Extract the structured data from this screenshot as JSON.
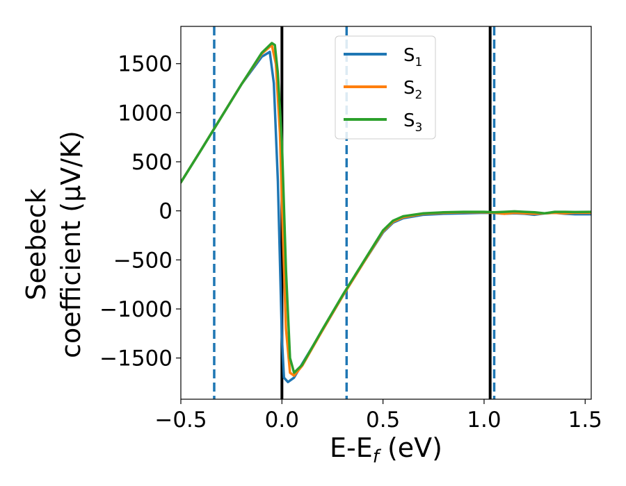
{
  "chart_data": {
    "type": "line",
    "xlabel": "E-E",
    "xlabel_sub": "f",
    "xlabel_unit": " (eV)",
    "ylabel_line1": "Seebeck",
    "ylabel_line2": "coefficient  (μV/K)",
    "xlim": [
      -0.5,
      1.53
    ],
    "ylim": [
      -1920,
      1880
    ],
    "xticks": [
      -0.5,
      0.0,
      0.5,
      1.0,
      1.5
    ],
    "xtick_labels": [
      "−0.5",
      "0.0",
      "0.5",
      "1.0",
      "1.5"
    ],
    "yticks": [
      -1500,
      -1000,
      -500,
      0,
      500,
      1000,
      1500
    ],
    "ytick_labels": [
      "−1500",
      "−1000",
      "−500",
      "0",
      "500",
      "1000",
      "1500"
    ],
    "grid": false,
    "legend_position": "top-center",
    "series": [
      {
        "name": "S",
        "subscript": "1",
        "color": "#1f77b4",
        "x": [
          -0.5,
          -0.4,
          -0.3,
          -0.2,
          -0.1,
          -0.06,
          -0.04,
          -0.02,
          0.0,
          0.01,
          0.03,
          0.06,
          0.1,
          0.2,
          0.3,
          0.4,
          0.5,
          0.55,
          0.6,
          0.7,
          0.8,
          0.9,
          1.0,
          1.05,
          1.1,
          1.15,
          1.2,
          1.25,
          1.3,
          1.35,
          1.4,
          1.45,
          1.53
        ],
        "y": [
          290,
          620,
          955,
          1290,
          1570,
          1620,
          1300,
          300,
          -1300,
          -1700,
          -1745,
          -1700,
          -1560,
          -1220,
          -870,
          -540,
          -220,
          -120,
          -75,
          -40,
          -30,
          -25,
          -20,
          -22,
          -30,
          -25,
          -30,
          -40,
          -25,
          -20,
          -30,
          -35,
          -35
        ]
      },
      {
        "name": "S",
        "subscript": "2",
        "color": "#ff7f0e",
        "x": [
          -0.5,
          -0.4,
          -0.3,
          -0.2,
          -0.1,
          -0.05,
          -0.03,
          -0.01,
          0.0,
          0.02,
          0.04,
          0.06,
          0.1,
          0.2,
          0.3,
          0.4,
          0.5,
          0.55,
          0.6,
          0.7,
          0.8,
          0.9,
          1.0,
          1.05,
          1.1,
          1.15,
          1.2,
          1.25,
          1.3,
          1.35,
          1.4,
          1.45,
          1.53
        ],
        "y": [
          290,
          620,
          955,
          1290,
          1600,
          1690,
          1500,
          800,
          100,
          -1200,
          -1650,
          -1680,
          -1580,
          -1220,
          -870,
          -540,
          -210,
          -110,
          -65,
          -30,
          -20,
          -15,
          -15,
          -20,
          -30,
          -20,
          -25,
          -30,
          -25,
          -20,
          -25,
          -20,
          -20
        ]
      },
      {
        "name": "S",
        "subscript": "3",
        "color": "#2ca02c",
        "x": [
          -0.5,
          -0.4,
          -0.3,
          -0.2,
          -0.1,
          -0.05,
          -0.035,
          -0.02,
          0.0,
          0.02,
          0.04,
          0.06,
          0.1,
          0.2,
          0.3,
          0.4,
          0.5,
          0.55,
          0.6,
          0.7,
          0.8,
          0.9,
          1.0,
          1.05,
          1.1,
          1.15,
          1.2,
          1.25,
          1.3,
          1.35,
          1.4,
          1.45,
          1.53
        ],
        "y": [
          290,
          620,
          955,
          1290,
          1610,
          1710,
          1690,
          1400,
          700,
          -600,
          -1500,
          -1650,
          -1570,
          -1210,
          -860,
          -530,
          -200,
          -100,
          -55,
          -25,
          -15,
          -10,
          -10,
          -15,
          -10,
          -5,
          -10,
          -15,
          -25,
          -10,
          -10,
          -12,
          -10
        ]
      }
    ],
    "vlines": [
      {
        "x": -0.335,
        "style": "dashed",
        "color": "#1f77b4"
      },
      {
        "x": 0.0,
        "style": "solid",
        "color": "#000000"
      },
      {
        "x": 0.32,
        "style": "dashed",
        "color": "#1f77b4"
      },
      {
        "x": 1.03,
        "style": "solid",
        "color": "#000000"
      },
      {
        "x": 1.05,
        "style": "dashed",
        "color": "#1f77b4"
      }
    ]
  }
}
